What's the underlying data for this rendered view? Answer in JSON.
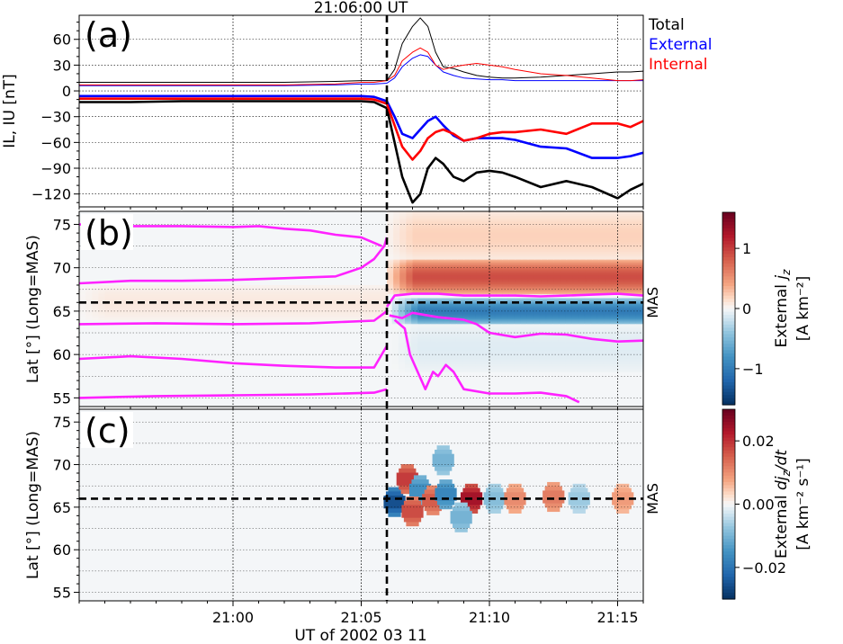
{
  "figure": {
    "event_label": "21:06:00 UT",
    "xlabel": "UT of 2002 03 11",
    "x_ticks": [
      "21:00",
      "21:05",
      "21:10",
      "21:15"
    ],
    "x_tick_minutes": [
      0,
      5,
      10,
      15
    ],
    "xlim_minutes_from_2100": [
      -6,
      16
    ],
    "event_minute": 6
  },
  "chart_data": [
    {
      "type": "line",
      "panel_label": "(a)",
      "ylabel": "IL, IU [nT]",
      "ylim": [
        -135,
        88
      ],
      "y_ticks": [
        60,
        30,
        0,
        -30,
        -60,
        -90,
        -120
      ],
      "y_tick_labels": [
        "60",
        "30",
        "0",
        "−30",
        "−60",
        "−90",
        "−120"
      ],
      "legend": [
        "Total",
        "External",
        "Internal"
      ],
      "legend_position": "outside-right",
      "x": [
        -6,
        -4,
        -2,
        0,
        2,
        4,
        5,
        5.5,
        6,
        6.3,
        6.6,
        7,
        7.3,
        7.6,
        7.9,
        8.2,
        8.6,
        9,
        9.5,
        10,
        10.5,
        11,
        12,
        13,
        14,
        15,
        15.5,
        16
      ],
      "series": [
        {
          "name": "Total",
          "kind": "IU",
          "color": "#000000",
          "width": 1,
          "values": [
            10,
            10,
            10,
            10,
            10,
            11,
            12,
            12,
            12,
            25,
            55,
            75,
            85,
            75,
            45,
            28,
            26,
            22,
            18,
            16,
            15,
            15,
            16,
            18,
            20,
            22,
            22,
            23
          ]
        },
        {
          "name": "External",
          "kind": "IU",
          "color": "#0000ff",
          "width": 1,
          "values": [
            6,
            6,
            6,
            6,
            6,
            7,
            8,
            8,
            9,
            15,
            28,
            38,
            42,
            40,
            30,
            22,
            18,
            15,
            14,
            13,
            13,
            12,
            12,
            12,
            12,
            12,
            12,
            12
          ]
        },
        {
          "name": "Internal",
          "kind": "IU",
          "color": "#ff0000",
          "width": 1,
          "values": [
            7,
            7,
            7,
            7,
            7,
            8,
            10,
            10,
            12,
            18,
            35,
            45,
            50,
            45,
            30,
            25,
            28,
            30,
            32,
            30,
            28,
            25,
            20,
            18,
            15,
            12,
            12,
            13
          ]
        },
        {
          "name": "Total",
          "kind": "IL",
          "color": "#000000",
          "width": 2.6,
          "values": [
            -13,
            -13,
            -12,
            -12,
            -12,
            -12,
            -12,
            -13,
            -20,
            -60,
            -100,
            -130,
            -120,
            -90,
            -78,
            -85,
            -100,
            -105,
            -95,
            -93,
            -95,
            -100,
            -112,
            -105,
            -112,
            -125,
            -115,
            -108
          ]
        },
        {
          "name": "External",
          "kind": "IL",
          "color": "#0000ff",
          "width": 2.6,
          "values": [
            -6,
            -6,
            -6,
            -6,
            -6,
            -6,
            -6,
            -7,
            -12,
            -30,
            -50,
            -55,
            -45,
            -35,
            -30,
            -40,
            -52,
            -58,
            -55,
            -55,
            -55,
            -57,
            -65,
            -67,
            -78,
            -78,
            -76,
            -72
          ]
        },
        {
          "name": "Internal",
          "kind": "IL",
          "color": "#ff0000",
          "width": 2.6,
          "values": [
            -9,
            -9,
            -9,
            -9,
            -9,
            -9,
            -9,
            -10,
            -15,
            -40,
            -65,
            -80,
            -70,
            -55,
            -48,
            -45,
            -50,
            -58,
            -55,
            -50,
            -48,
            -48,
            -45,
            -50,
            -38,
            -38,
            -42,
            -35
          ]
        }
      ]
    },
    {
      "type": "heatmap",
      "panel_label": "(b)",
      "ylabel": "Lat [°] (Long=MAS)",
      "ylim": [
        54,
        76.5
      ],
      "y_ticks": [
        55,
        60,
        65,
        70,
        75
      ],
      "station_label": "MAS",
      "station_lat": 66,
      "colorbar_label_line1": "External",
      "colorbar_label_line2": "[A km⁻²]",
      "colorbar_symbol": "j",
      "colorbar_subscript": "z",
      "colorbar_range": [
        -1.6,
        1.6
      ],
      "colorbar_ticks": [
        1,
        0,
        -1
      ],
      "colorbar_tick_labels": [
        "1",
        "0",
        "−1"
      ],
      "bands": [
        {
          "lat_min": 67,
          "lat_max": 71,
          "value": 0.9,
          "t_start": 6,
          "t_end": 16
        },
        {
          "lat_min": 71,
          "lat_max": 76.5,
          "value": 0.2,
          "t_start": 6,
          "t_end": 16
        },
        {
          "lat_min": 63.5,
          "lat_max": 66.5,
          "value": -1.0,
          "t_start": 6.2,
          "t_end": 16
        },
        {
          "lat_min": 58,
          "lat_max": 63.5,
          "value": -0.1,
          "t_start": 6.2,
          "t_end": 16
        },
        {
          "lat_min": 64,
          "lat_max": 68,
          "value": 0.08,
          "t_start": -6,
          "t_end": 6
        }
      ],
      "contour_color": "#ff22ff",
      "contours": [
        {
          "t": [
            -6,
            -4,
            -2,
            0,
            1,
            2,
            3,
            4,
            5,
            5.8
          ],
          "lat": [
            75,
            74.8,
            74.8,
            74.7,
            74.8,
            74.5,
            74.3,
            73.8,
            73.5,
            72.5
          ]
        },
        {
          "t": [
            -6,
            -4,
            -2,
            0,
            2,
            4,
            5,
            5.5,
            5.9,
            6
          ],
          "lat": [
            68.2,
            68.5,
            68.5,
            68.6,
            68.8,
            69,
            70,
            71,
            72.5,
            73.5
          ]
        },
        {
          "t": [
            -6,
            -3,
            0,
            3,
            5.5,
            6
          ],
          "lat": [
            63.5,
            63.6,
            63.5,
            63.6,
            63.9,
            65
          ]
        },
        {
          "t": [
            -6,
            -4,
            -2,
            0,
            2,
            4,
            5.5,
            6
          ],
          "lat": [
            59.5,
            59.8,
            59.5,
            59,
            58.7,
            58.5,
            58.5,
            61
          ]
        },
        {
          "t": [
            -6,
            -3,
            0,
            3,
            5.5,
            6
          ],
          "lat": [
            55,
            55.2,
            55.3,
            55.4,
            55.6,
            56
          ]
        },
        {
          "t": [
            6,
            6.3,
            7,
            8,
            9,
            10,
            11,
            12,
            13,
            14,
            15,
            16
          ],
          "lat": [
            65.5,
            66.8,
            67,
            67,
            66.8,
            66.8,
            66.8,
            66.7,
            66.8,
            66.9,
            67,
            66.8
          ]
        },
        {
          "t": [
            6.1,
            6.6,
            7,
            8,
            9,
            9.5,
            10,
            11,
            12,
            13,
            14,
            15,
            16
          ],
          "lat": [
            64.5,
            64.2,
            64.8,
            64.3,
            64,
            63.5,
            62.5,
            62,
            62.4,
            62.3,
            61.8,
            61.5,
            61.6
          ]
        },
        {
          "t": [
            6.3,
            6.7,
            6.9,
            7.2,
            7.5,
            7.8,
            8,
            8.3,
            8.6,
            9,
            10,
            11,
            12,
            13,
            13.5
          ],
          "lat": [
            64,
            63,
            60,
            58,
            56,
            58,
            57.5,
            58.8,
            58,
            56,
            55.5,
            55.5,
            55.6,
            55.2,
            54.5
          ]
        }
      ]
    },
    {
      "type": "heatmap",
      "panel_label": "(c)",
      "ylabel": "Lat [°] (Long=MAS)",
      "ylim": [
        54,
        76.5
      ],
      "y_ticks": [
        55,
        60,
        65,
        70,
        75
      ],
      "station_label": "MAS",
      "station_lat": 66,
      "colorbar_label_line1": "External",
      "colorbar_label_line2": "[A km⁻² s⁻¹]",
      "colorbar_symbol": "dj",
      "colorbar_subscript": "z",
      "colorbar_suffix": "/dt",
      "colorbar_range": [
        -0.03,
        0.03
      ],
      "colorbar_ticks": [
        0.02,
        0.0,
        -0.02
      ],
      "colorbar_tick_labels": [
        "0.02",
        "0.00",
        "−0.02"
      ],
      "blobs": [
        {
          "t": 6.3,
          "lat": 65.6,
          "value": -0.03
        },
        {
          "t": 6.8,
          "lat": 68.3,
          "value": 0.022
        },
        {
          "t": 7.3,
          "lat": 67.0,
          "value": -0.018
        },
        {
          "t": 7.0,
          "lat": 64.5,
          "value": 0.02
        },
        {
          "t": 7.8,
          "lat": 65.8,
          "value": 0.018
        },
        {
          "t": 8.3,
          "lat": 66.5,
          "value": -0.02
        },
        {
          "t": 8.2,
          "lat": 70.5,
          "value": -0.012
        },
        {
          "t": 9.3,
          "lat": 66.0,
          "value": 0.028
        },
        {
          "t": 8.9,
          "lat": 63.8,
          "value": -0.012
        },
        {
          "t": 10.2,
          "lat": 66.0,
          "value": -0.01
        },
        {
          "t": 11.0,
          "lat": 66.0,
          "value": 0.012
        },
        {
          "t": 12.5,
          "lat": 66.2,
          "value": 0.014
        },
        {
          "t": 13.5,
          "lat": 66.0,
          "value": -0.008
        },
        {
          "t": 15.2,
          "lat": 66.0,
          "value": 0.01
        }
      ]
    }
  ]
}
